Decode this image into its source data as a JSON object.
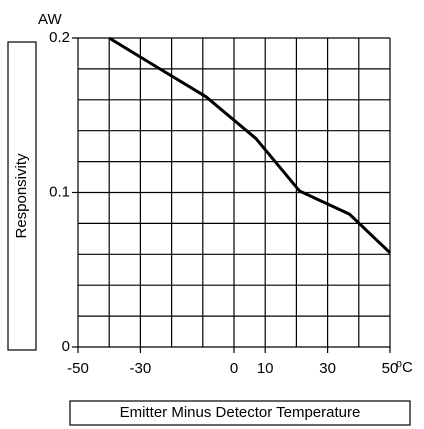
{
  "chart_data": {
    "type": "line",
    "y_unit": "AW",
    "ylabel": "Responsivity",
    "xlabel": "Emitter Minus Detector Temperature",
    "x_unit": "⁰C",
    "series": [
      {
        "name": "Responsivity",
        "color": "#000000",
        "x": [
          -40,
          -27,
          -9,
          7,
          21,
          37,
          50
        ],
        "values": [
          0.2,
          0.184,
          0.162,
          0.135,
          0.101,
          0.086,
          0.061
        ]
      }
    ],
    "xlim": [
      -50,
      50
    ],
    "xticks": [
      -50,
      -30,
      0,
      10,
      30,
      50
    ],
    "ylim": [
      0,
      0.2
    ],
    "yticks": [
      0,
      0.1,
      0.2
    ],
    "xgrid": [
      -50,
      -40,
      -30,
      -20,
      -10,
      0,
      10,
      20,
      30,
      40,
      50
    ],
    "ygrid": [
      0,
      0.02,
      0.04,
      0.06,
      0.08,
      0.1,
      0.12,
      0.14,
      0.16,
      0.18,
      0.2
    ],
    "grid": true
  }
}
